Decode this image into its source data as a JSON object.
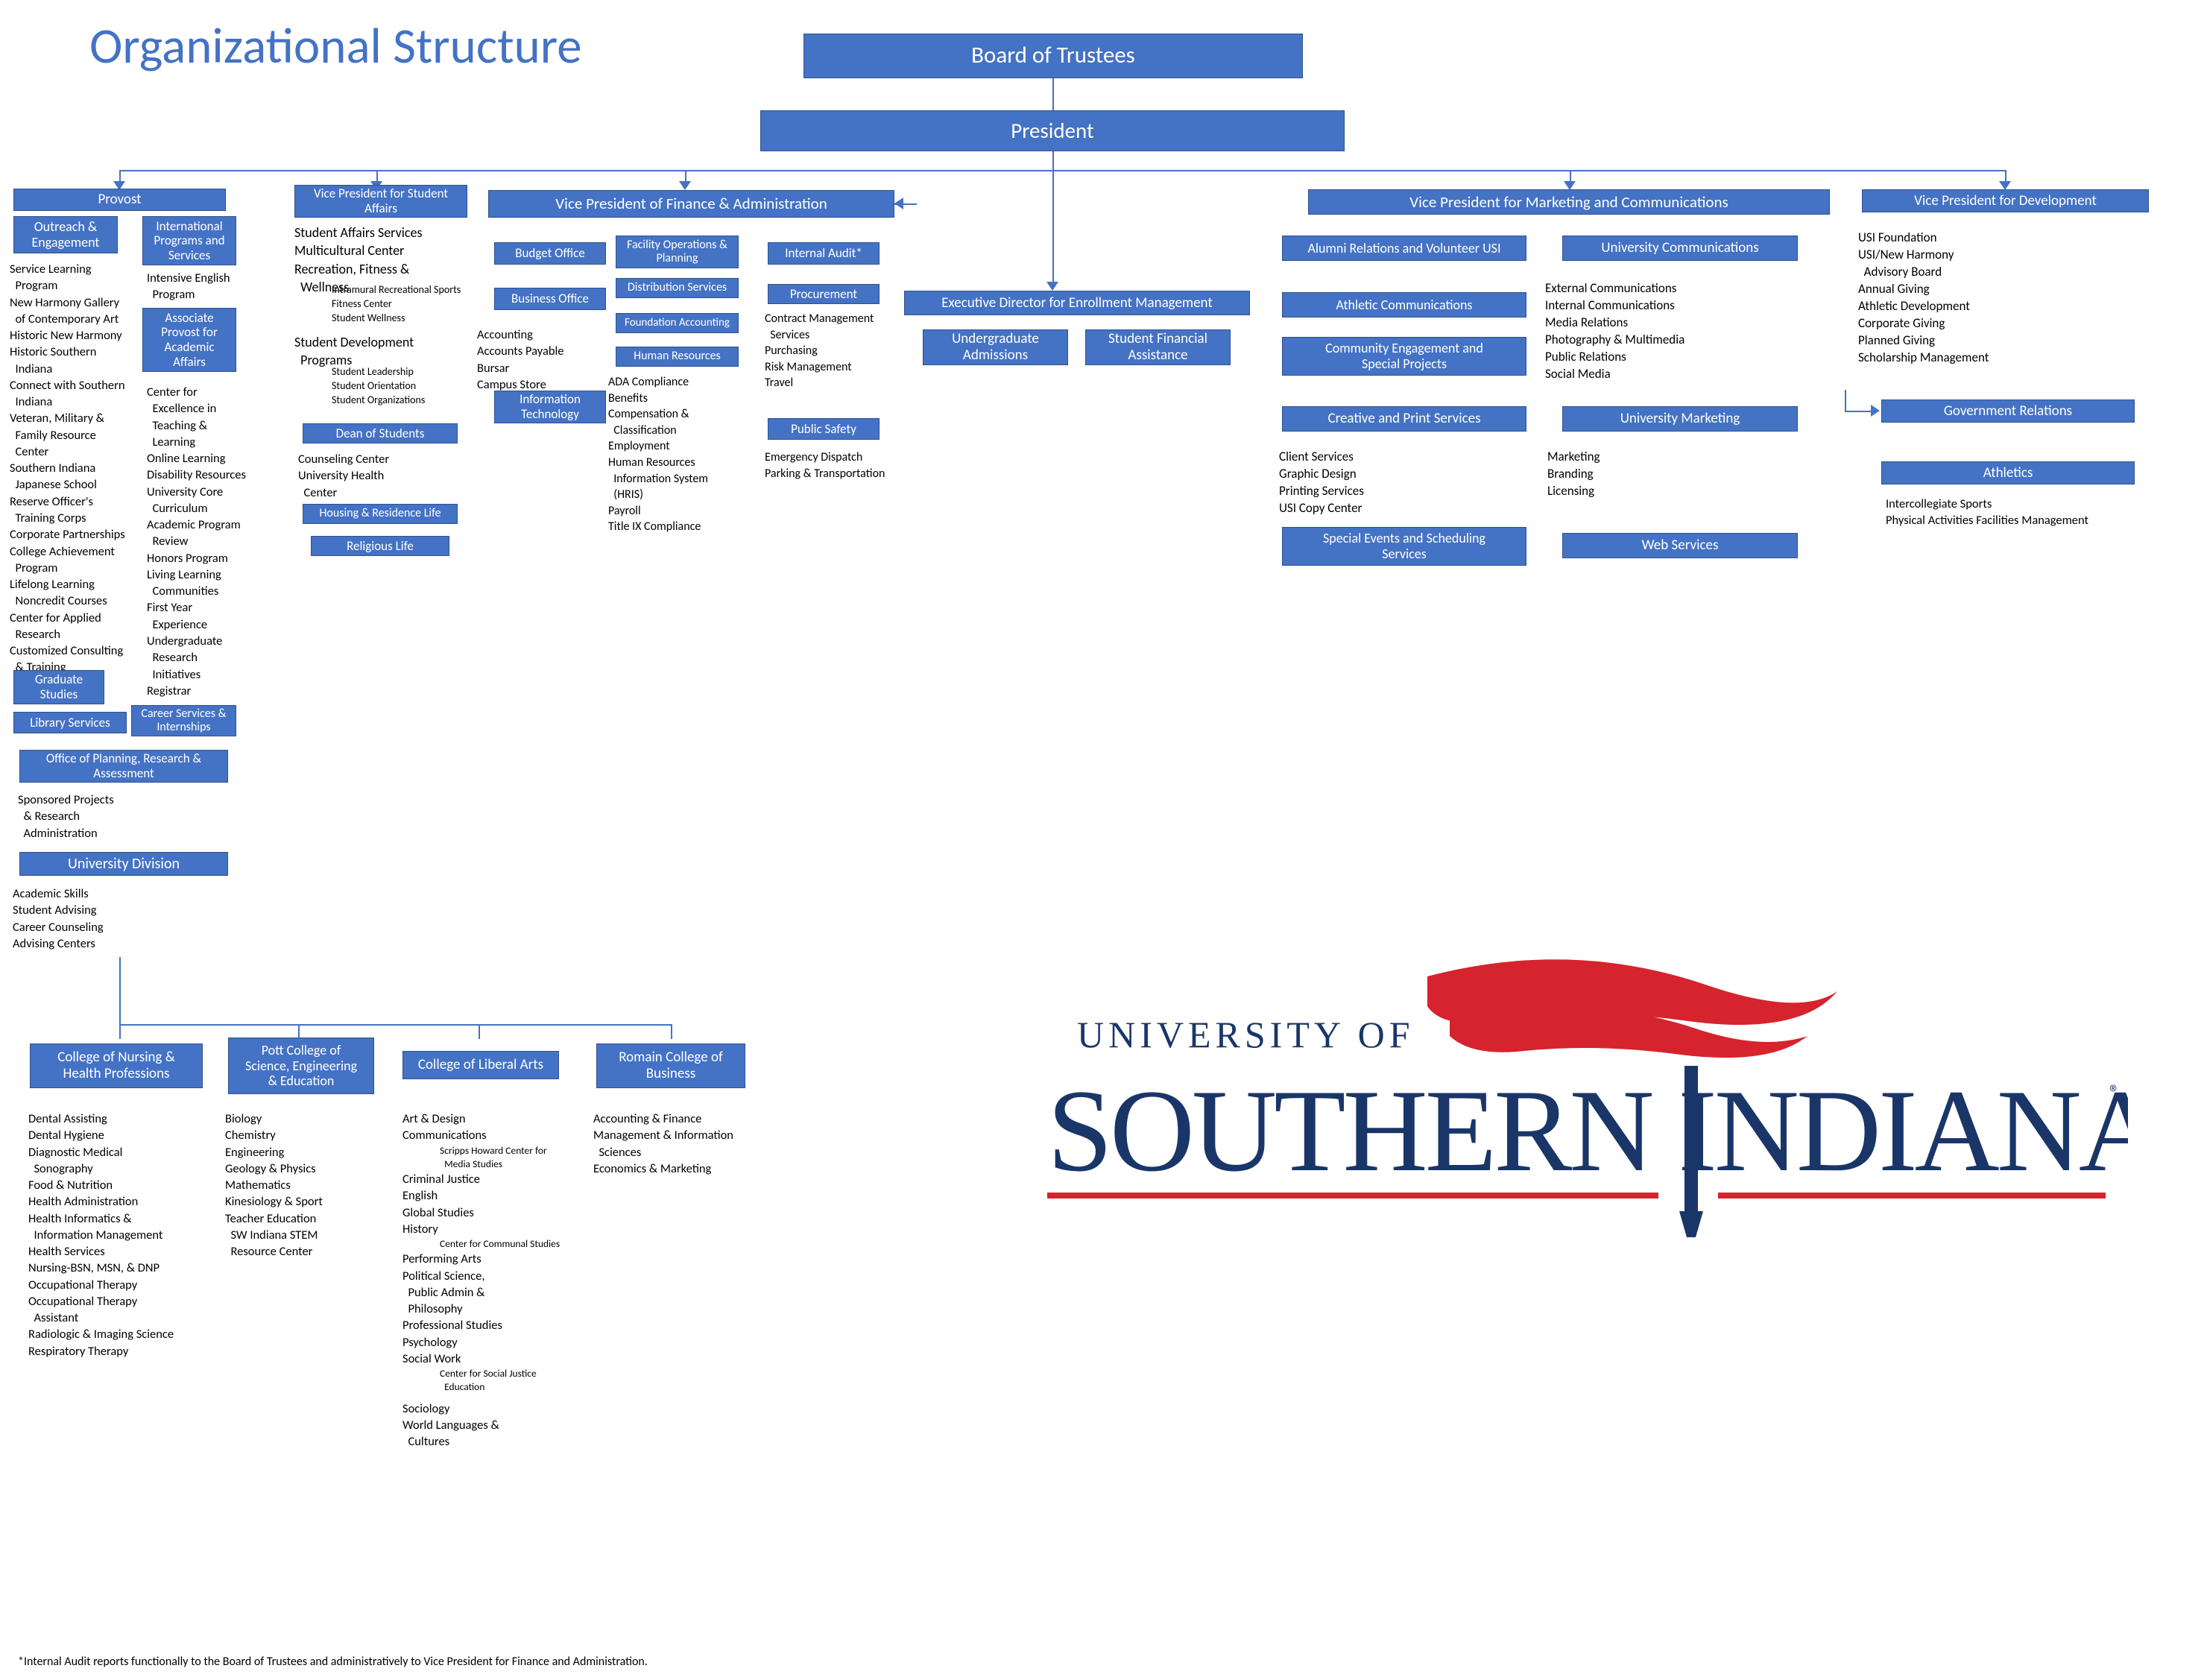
{
  "colors": {
    "box_bg": "#4472c4",
    "box_border": "#2f528f",
    "box_text": "#ffffff",
    "title": "#4472c4",
    "body_text": "#000000",
    "line": "#4472c4",
    "logo_red": "#d5242d",
    "logo_blue": "#1a3668"
  },
  "title": "Organizational Structure",
  "footnote": "*Internal Audit reports functionally to the Board of Trustees and administratively to Vice President for Finance and Administration.",
  "logo": {
    "top_line": "UNIVERSITY OF",
    "main": "SOUTHERN INDIANA"
  },
  "top": {
    "board": "Board of Trustees",
    "president": "President"
  },
  "provost": {
    "head": "Provost",
    "outreach": "Outreach &\nEngagement",
    "outreach_items": [
      "Service Learning",
      "  Program",
      "New Harmony Gallery",
      "  of Contemporary Art",
      "Historic New Harmony",
      "Historic Southern",
      "  Indiana",
      "Connect with Southern",
      "  Indiana",
      "Veteran, Military &",
      "  Family Resource",
      "  Center",
      "Southern Indiana",
      "  Japanese School",
      "Reserve Officer's",
      "  Training Corps",
      "Corporate Partnerships",
      "College Achievement",
      "  Program",
      "Lifelong Learning",
      "  Noncredit Courses",
      "Center for Applied",
      "  Research",
      "Customized Consulting",
      "  & Training"
    ],
    "intl": "International\nPrograms and\nServices",
    "intl_items": [
      "Intensive English",
      "  Program"
    ],
    "assoc": "Associate\nProvost for\nAcademic\nAffairs",
    "assoc_items": [
      "Center for",
      "  Excellence in",
      "  Teaching &",
      "  Learning",
      "Online Learning",
      "Disability Resources",
      "University Core",
      "  Curriculum",
      "Academic Program",
      "  Review",
      "Honors Program",
      "Living Learning",
      "  Communities",
      "First Year",
      "  Experience",
      "Undergraduate",
      "  Research",
      "  Initiatives",
      "Registrar"
    ],
    "grad": "Graduate\nStudies",
    "library": "Library Services",
    "career": "Career Services &\nInternships",
    "opra": "Office of Planning, Research &\nAssessment",
    "opra_items": [
      "Sponsored Projects",
      "  & Research",
      "  Administration"
    ],
    "univdiv": "University Division",
    "univdiv_items": [
      "Academic Skills",
      "Student Advising",
      "Career Counseling",
      "Advising Centers"
    ]
  },
  "vpsa": {
    "head": "Vice President for Student\nAffairs",
    "items_top": [
      "Student Affairs Services",
      "Multicultural Center",
      "Recreation, Fitness &",
      "  Wellness"
    ],
    "items_top_sub": [
      "Intramural Recreational Sports",
      "Fitness Center",
      "Student Wellness"
    ],
    "items_mid": [
      "Student Development",
      "  Programs"
    ],
    "items_mid_sub": [
      "Student Leadership",
      "Student Orientation",
      "Student Organizations"
    ],
    "dean": "Dean of Students",
    "dean_items": [
      "Counseling Center",
      "University Health",
      "  Center"
    ],
    "housing": "Housing & Residence Life",
    "religious": "Religious Life"
  },
  "vpfa": {
    "head": "Vice President of Finance & Administration",
    "budget": "Budget Office",
    "business": "Business Office",
    "business_items": [
      "Accounting",
      "Accounts Payable",
      "Bursar",
      "Campus Store"
    ],
    "it": "Information\nTechnology",
    "facops": "Facility Operations &\nPlanning",
    "dist": "Distribution Services",
    "fndacct": "Foundation Accounting",
    "hr": "Human Resources",
    "hr_items": [
      "ADA Compliance",
      "Benefits",
      "Compensation &",
      "  Classification",
      "Employment",
      "Human Resources",
      "  Information System",
      "  (HRIS)",
      "Payroll",
      "Title IX Compliance"
    ],
    "audit": "Internal Audit*",
    "procure": "Procurement",
    "procure_items": [
      "Contract Management",
      "  Services",
      "Purchasing",
      "Risk Management",
      "Travel"
    ],
    "safety": "Public Safety",
    "safety_items": [
      "Emergency Dispatch",
      "Parking & Transportation"
    ]
  },
  "enroll": {
    "head": "Executive Director for Enrollment Management",
    "undergrad": "Undergraduate\nAdmissions",
    "sfa": "Student Financial\nAssistance"
  },
  "vpmc": {
    "head": "Vice President for Marketing and Communications",
    "alumni": "Alumni Relations and Volunteer USI",
    "athcomm": "Athletic Communications",
    "cesp": "Community Engagement and\nSpecial Projects",
    "cps": "Creative and Print Services",
    "cps_items": [
      "Client Services",
      "Graphic Design",
      "Printing Services",
      "USI Copy Center"
    ],
    "sess": "Special Events and Scheduling\nServices",
    "univcomm": "University Communications",
    "univcomm_items": [
      "External Communications",
      "Internal Communications",
      "Media Relations",
      "Photography & Multimedia",
      "Public Relations",
      "Social Media"
    ],
    "univmkt": "University Marketing",
    "univmkt_items": [
      "Marketing",
      "Branding",
      "Licensing"
    ],
    "web": "Web Services"
  },
  "vpdev": {
    "head": "Vice President for Development",
    "items": [
      "USI Foundation",
      "USI/New Harmony",
      "  Advisory Board",
      "Annual Giving",
      "Athletic Development",
      "Corporate Giving",
      "Planned Giving",
      "Scholarship Management"
    ],
    "govrel": "Government Relations",
    "athletics": "Athletics",
    "athletics_items": [
      "Intercollegiate Sports",
      "Physical Activities Facilities Management"
    ]
  },
  "colleges": {
    "nursing": {
      "head": "College of Nursing &\nHealth Professions",
      "items": [
        "Dental Assisting",
        "Dental Hygiene",
        "Diagnostic Medical",
        "  Sonography",
        "Food & Nutrition",
        "Health Administration",
        "Health Informatics &",
        "  Information Management",
        "Health Services",
        "Nursing-BSN, MSN, & DNP",
        "Occupational Therapy",
        "Occupational Therapy",
        "  Assistant",
        "Radiologic & Imaging Science",
        "Respiratory Therapy"
      ]
    },
    "pott": {
      "head": "Pott College of\nScience, Engineering\n& Education",
      "items": [
        "Biology",
        "Chemistry",
        "Engineering",
        "Geology & Physics",
        "Mathematics",
        "Kinesiology & Sport",
        "Teacher Education",
        "  SW Indiana STEM",
        "  Resource Center"
      ]
    },
    "liberal": {
      "head": "College of Liberal Arts",
      "items": [
        "Art & Design",
        "Communications"
      ],
      "sub1": [
        "Scripps Howard Center for",
        "  Media Studies"
      ],
      "items2": [
        "Criminal Justice",
        "English",
        "Global Studies",
        "History"
      ],
      "sub2": [
        "Center for Communal Studies"
      ],
      "items3": [
        "Performing Arts",
        "Political Science,",
        "  Public Admin &",
        "  Philosophy",
        "Professional Studies",
        "Psychology",
        "Social Work"
      ],
      "sub3": [
        "Center for Social Justice",
        "  Education"
      ],
      "items4": [
        "Sociology",
        "World Languages &",
        "  Cultures"
      ]
    },
    "romain": {
      "head": "Romain College of\nBusiness",
      "items": [
        "Accounting & Finance",
        "Management & Information",
        "  Sciences",
        "Economics & Marketing"
      ]
    }
  }
}
